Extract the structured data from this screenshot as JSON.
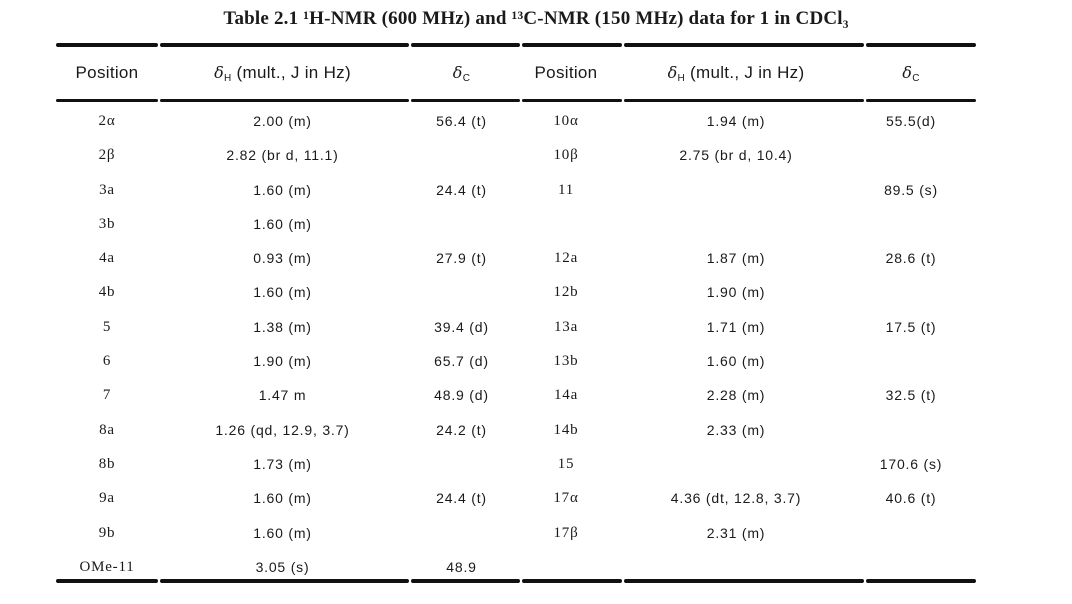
{
  "title": "Table 2.1 ¹H-NMR (600 MHz) and ¹³C-NMR (150 MHz) data for 1 in CDCl₃",
  "headers": {
    "position": "Position",
    "delta_symbol": "δ",
    "dh_sub": "H",
    "dh_rest": " (mult., J in Hz)",
    "dc_sub": "C"
  },
  "rows": [
    {
      "left": {
        "position": "2α",
        "dH": "2.00 (m)",
        "dC": "56.4 (t)"
      },
      "right": {
        "position": "10α",
        "dH": "1.94 (m)",
        "dC": "55.5(d)"
      }
    },
    {
      "left": {
        "position": "2β",
        "dH": "2.82 (br d, 11.1)",
        "dC": ""
      },
      "right": {
        "position": "10β",
        "dH": "2.75 (br d, 10.4)",
        "dC": ""
      }
    },
    {
      "left": {
        "position": "3a",
        "dH": "1.60 (m)",
        "dC": "24.4 (t)"
      },
      "right": {
        "position": "11",
        "dH": "",
        "dC": "89.5 (s)"
      }
    },
    {
      "left": {
        "position": "3b",
        "dH": "1.60 (m)",
        "dC": ""
      },
      "right": {
        "position": "",
        "dH": "",
        "dC": ""
      }
    },
    {
      "left": {
        "position": "4a",
        "dH": "0.93 (m)",
        "dC": "27.9 (t)"
      },
      "right": {
        "position": "12a",
        "dH": "1.87 (m)",
        "dC": "28.6 (t)"
      }
    },
    {
      "left": {
        "position": "4b",
        "dH": "1.60 (m)",
        "dC": ""
      },
      "right": {
        "position": "12b",
        "dH": "1.90 (m)",
        "dC": ""
      }
    },
    {
      "left": {
        "position": "5",
        "dH": "1.38 (m)",
        "dC": "39.4 (d)"
      },
      "right": {
        "position": "13a",
        "dH": "1.71 (m)",
        "dC": "17.5 (t)"
      }
    },
    {
      "left": {
        "position": "6",
        "dH": "1.90 (m)",
        "dC": "65.7 (d)"
      },
      "right": {
        "position": "13b",
        "dH": "1.60 (m)",
        "dC": ""
      }
    },
    {
      "left": {
        "position": "7",
        "dH": "1.47 m",
        "dC": "48.9 (d)"
      },
      "right": {
        "position": "14a",
        "dH": "2.28 (m)",
        "dC": "32.5 (t)"
      }
    },
    {
      "left": {
        "position": "8a",
        "dH": "1.26 (qd, 12.9, 3.7)",
        "dC": "24.2 (t)"
      },
      "right": {
        "position": "14b",
        "dH": "2.33 (m)",
        "dC": ""
      }
    },
    {
      "left": {
        "position": "8b",
        "dH": "1.73 (m)",
        "dC": ""
      },
      "right": {
        "position": "15",
        "dH": "",
        "dC": "170.6 (s)"
      }
    },
    {
      "left": {
        "position": "9a",
        "dH": "1.60 (m)",
        "dC": "24.4 (t)"
      },
      "right": {
        "position": "17α",
        "dH": "4.36 (dt, 12.8, 3.7)",
        "dC": "40.6 (t)"
      }
    },
    {
      "left": {
        "position": "9b",
        "dH": "1.60 (m)",
        "dC": ""
      },
      "right": {
        "position": "17β",
        "dH": "2.31 (m)",
        "dC": ""
      }
    },
    {
      "left": {
        "position": "OMe-11",
        "dH": "3.05 (s)",
        "dC": "48.9"
      },
      "right": {
        "position": "",
        "dH": "",
        "dC": ""
      }
    }
  ]
}
